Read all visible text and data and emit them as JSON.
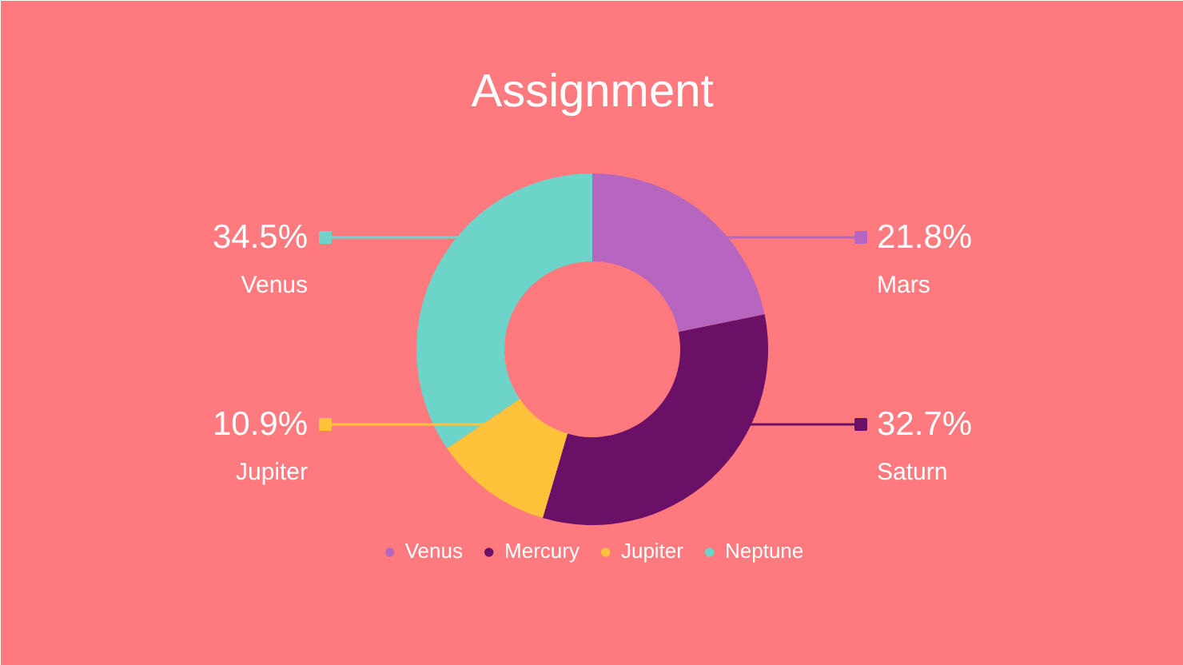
{
  "chart_data": {
    "type": "donut",
    "title": "Assignment",
    "categories": [
      "Venus",
      "Mercury",
      "Jupiter",
      "Neptune"
    ],
    "values": [
      21.8,
      32.7,
      10.9,
      34.5
    ],
    "colors": [
      "#b766c0",
      "#6a1066",
      "#ffc23a",
      "#6dd4c9"
    ],
    "value_labels": [
      "21.8%",
      "32.7%",
      "10.9%",
      "34.5%"
    ],
    "annotations": [
      "Mars",
      "Saturn",
      "Jupiter",
      "Venus"
    ],
    "legend": "bottom"
  }
}
